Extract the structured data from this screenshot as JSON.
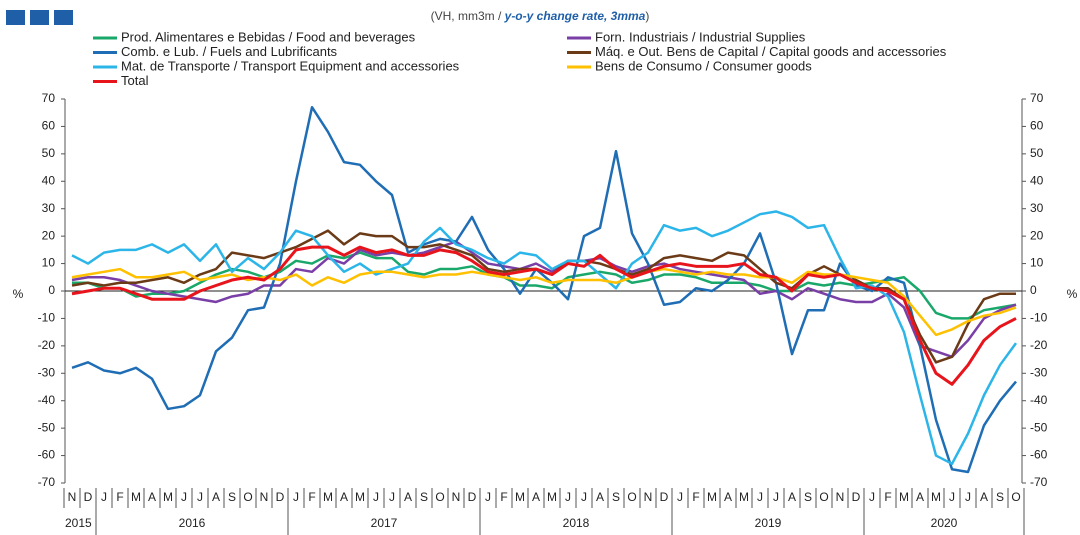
{
  "chart_data": {
    "type": "line",
    "subtitle": [
      "(VH, mm3m / ",
      "y-o-y change rate, 3mma",
      ")"
    ],
    "ylabel": "%",
    "categories": [
      "N",
      "D",
      "J",
      "F",
      "M",
      "A",
      "M",
      "J",
      "J",
      "A",
      "S",
      "O",
      "N",
      "D",
      "J",
      "F",
      "M",
      "A",
      "M",
      "J",
      "J",
      "A",
      "S",
      "O",
      "N",
      "D",
      "J",
      "F",
      "M",
      "A",
      "M",
      "J",
      "J",
      "A",
      "S",
      "O",
      "N",
      "D",
      "J",
      "F",
      "M",
      "A",
      "M",
      "J",
      "J",
      "A",
      "S",
      "O",
      "N",
      "D",
      "J",
      "F",
      "M",
      "A",
      "M",
      "J",
      "J",
      "A",
      "S",
      "O"
    ],
    "years": [
      "2015",
      "2016",
      "2017",
      "2018",
      "2019",
      "2020"
    ],
    "ylim": [
      -70,
      70
    ],
    "yticks": [
      -70,
      -60,
      -50,
      -40,
      -30,
      -20,
      -10,
      0,
      10,
      20,
      30,
      40,
      50,
      60,
      70
    ],
    "grid": false,
    "series": [
      {
        "name": "Prod. Alimentares e Bebidas / Food and beverages",
        "color": "#1aa86a",
        "values": [
          3,
          3,
          1,
          1,
          -2,
          -1,
          -1,
          0,
          3,
          6,
          8,
          7,
          5,
          7,
          11,
          10,
          13,
          12,
          14,
          12,
          12,
          7,
          6,
          8,
          8,
          9,
          6,
          5,
          2,
          2,
          1,
          5,
          6,
          7,
          6,
          3,
          4,
          6,
          6,
          5,
          3,
          3,
          3,
          2,
          0,
          0,
          3,
          2,
          3,
          2,
          3,
          4,
          5,
          0,
          -8,
          -10,
          -10,
          -7,
          -6,
          -5
        ]
      },
      {
        "name": "Forn. Industriais / Industrial Supplies",
        "color": "#7a3fa6",
        "values": [
          4,
          5,
          5,
          4,
          2,
          0,
          -1,
          -2,
          -3,
          -4,
          -2,
          -1,
          2,
          2,
          8,
          7,
          12,
          10,
          15,
          13,
          14,
          13,
          14,
          16,
          18,
          14,
          10,
          9,
          8,
          10,
          7,
          11,
          11,
          12,
          9,
          7,
          9,
          10,
          8,
          7,
          6,
          5,
          4,
          -1,
          0,
          -3,
          1,
          -1,
          -3,
          -4,
          -4,
          -1,
          -6,
          -20,
          -22,
          -24,
          -18,
          -10,
          -7,
          -5
        ]
      },
      {
        "name": "Comb. e Lub. /  Fuels and Lubrificants",
        "color": "#1f6db5",
        "values": [
          -28,
          -26,
          -29,
          -30,
          -28,
          -32,
          -43,
          -42,
          -38,
          -22,
          -17,
          -7,
          -6,
          10,
          40,
          67,
          58,
          47,
          46,
          40,
          35,
          14,
          17,
          19,
          18,
          27,
          15,
          8,
          -1,
          8,
          3,
          -3,
          20,
          23,
          51,
          21,
          10,
          -5,
          -4,
          1,
          0,
          4,
          10,
          21,
          3,
          -23,
          -7,
          -7,
          10,
          2,
          0,
          5,
          3,
          -20,
          -47,
          -65,
          -66,
          -49,
          -40,
          -33
        ]
      },
      {
        "name": "Máq. e Out. Bens de Capital / Capital goods and accessories",
        "color": "#6b3a17",
        "values": [
          2,
          3,
          2,
          3,
          3,
          4,
          5,
          3,
          6,
          8,
          14,
          13,
          12,
          14,
          16,
          19,
          22,
          17,
          21,
          20,
          20,
          16,
          16,
          17,
          15,
          13,
          8,
          7,
          8,
          8,
          6,
          11,
          11,
          10,
          8,
          6,
          8,
          12,
          13,
          12,
          11,
          14,
          13,
          8,
          3,
          1,
          6,
          9,
          6,
          4,
          1,
          1,
          -3,
          -16,
          -26,
          -24,
          -12,
          -3,
          -1,
          -1
        ]
      },
      {
        "name": "Mat. de Transporte / Transport Equipment and accessories",
        "color": "#2cb5e8",
        "values": [
          13,
          10,
          14,
          15,
          15,
          17,
          14,
          17,
          11,
          17,
          7,
          12,
          8,
          14,
          22,
          20,
          13,
          7,
          10,
          6,
          8,
          10,
          18,
          23,
          17,
          15,
          12,
          10,
          14,
          13,
          8,
          11,
          11,
          6,
          1,
          10,
          14,
          24,
          22,
          23,
          20,
          22,
          25,
          28,
          29,
          27,
          23,
          24,
          12,
          1,
          2,
          -2,
          -15,
          -38,
          -60,
          -63,
          -52,
          -38,
          -27,
          -19
        ]
      },
      {
        "name": "Bens de Consumo / Consumer goods",
        "color": "#ffc000",
        "values": [
          5,
          6,
          7,
          8,
          5,
          5,
          6,
          7,
          4,
          5,
          6,
          4,
          5,
          4,
          6,
          2,
          5,
          3,
          6,
          7,
          7,
          6,
          5,
          6,
          6,
          7,
          6,
          5,
          4,
          5,
          3,
          4,
          4,
          4,
          3,
          5,
          7,
          8,
          7,
          6,
          7,
          6,
          6,
          5,
          5,
          3,
          7,
          6,
          6,
          5,
          4,
          3,
          -2,
          -9,
          -16,
          -14,
          -11,
          -9,
          -8,
          -6
        ]
      },
      {
        "name": "Total",
        "color": "#e8141c",
        "values": [
          -1,
          0,
          1,
          1,
          -1,
          -3,
          -3,
          -3,
          0,
          2,
          4,
          5,
          4,
          8,
          15,
          16,
          16,
          13,
          16,
          14,
          15,
          13,
          13,
          15,
          14,
          11,
          7,
          6,
          7,
          8,
          6,
          10,
          9,
          13,
          8,
          5,
          7,
          9,
          10,
          9,
          9,
          9,
          10,
          6,
          5,
          0,
          6,
          5,
          6,
          3,
          1,
          0,
          -3,
          -18,
          -30,
          -34,
          -27,
          -18,
          -13,
          -10
        ]
      }
    ]
  }
}
